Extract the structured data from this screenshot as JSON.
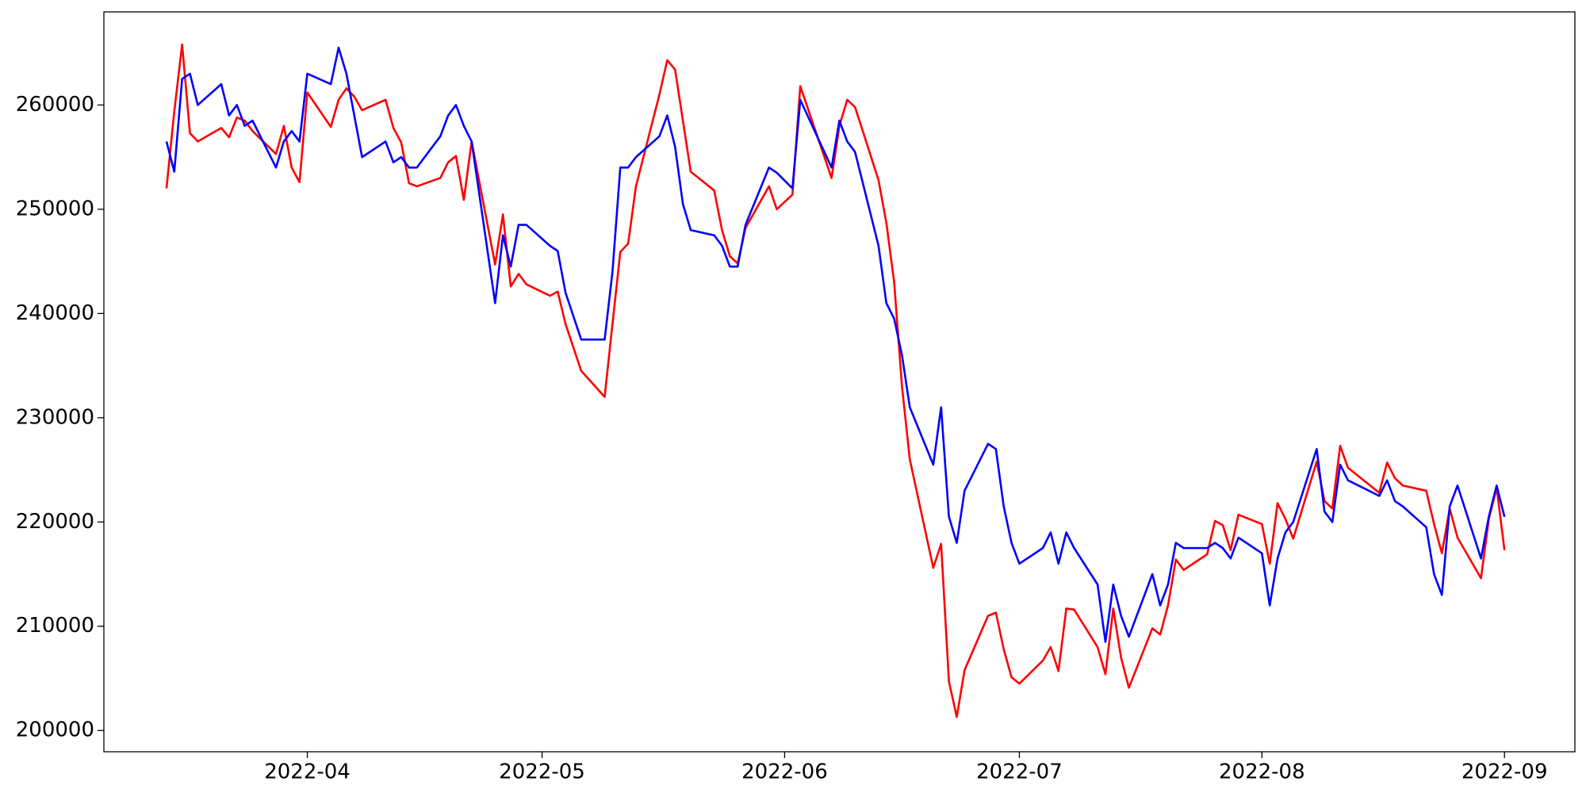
{
  "chart_data": {
    "type": "line",
    "x": [
      "2022-03-14",
      "2022-03-15",
      "2022-03-16",
      "2022-03-17",
      "2022-03-18",
      "2022-03-21",
      "2022-03-22",
      "2022-03-23",
      "2022-03-24",
      "2022-03-25",
      "2022-03-28",
      "2022-03-29",
      "2022-03-30",
      "2022-03-31",
      "2022-04-01",
      "2022-04-04",
      "2022-04-05",
      "2022-04-06",
      "2022-04-07",
      "2022-04-08",
      "2022-04-11",
      "2022-04-12",
      "2022-04-13",
      "2022-04-14",
      "2022-04-15",
      "2022-04-18",
      "2022-04-19",
      "2022-04-20",
      "2022-04-21",
      "2022-04-22",
      "2022-04-25",
      "2022-04-26",
      "2022-04-27",
      "2022-04-28",
      "2022-04-29",
      "2022-05-02",
      "2022-05-03",
      "2022-05-04",
      "2022-05-06",
      "2022-05-09",
      "2022-05-10",
      "2022-05-11",
      "2022-05-12",
      "2022-05-13",
      "2022-05-16",
      "2022-05-17",
      "2022-05-18",
      "2022-05-19",
      "2022-05-20",
      "2022-05-23",
      "2022-05-24",
      "2022-05-25",
      "2022-05-26",
      "2022-05-27",
      "2022-05-30",
      "2022-05-31",
      "2022-06-02",
      "2022-06-03",
      "2022-06-07",
      "2022-06-08",
      "2022-06-09",
      "2022-06-10",
      "2022-06-13",
      "2022-06-14",
      "2022-06-15",
      "2022-06-16",
      "2022-06-17",
      "2022-06-20",
      "2022-06-21",
      "2022-06-22",
      "2022-06-23",
      "2022-06-24",
      "2022-06-27",
      "2022-06-28",
      "2022-06-29",
      "2022-06-30",
      "2022-07-01",
      "2022-07-04",
      "2022-07-05",
      "2022-07-06",
      "2022-07-07",
      "2022-07-08",
      "2022-07-11",
      "2022-07-12",
      "2022-07-13",
      "2022-07-14",
      "2022-07-15",
      "2022-07-18",
      "2022-07-19",
      "2022-07-20",
      "2022-07-21",
      "2022-07-22",
      "2022-07-25",
      "2022-07-26",
      "2022-07-27",
      "2022-07-28",
      "2022-07-29",
      "2022-08-01",
      "2022-08-02",
      "2022-08-03",
      "2022-08-04",
      "2022-08-05",
      "2022-08-08",
      "2022-08-09",
      "2022-08-10",
      "2022-08-11",
      "2022-08-12",
      "2022-08-16",
      "2022-08-17",
      "2022-08-18",
      "2022-08-19",
      "2022-08-22",
      "2022-08-23",
      "2022-08-24",
      "2022-08-25",
      "2022-08-26",
      "2022-08-29",
      "2022-08-30",
      "2022-08-31",
      "2022-09-01"
    ],
    "series": [
      {
        "color": "#ff0000",
        "values": [
          252000,
          259400,
          265800,
          257300,
          256500,
          257800,
          256900,
          258800,
          258500,
          257500,
          255300,
          258000,
          254000,
          252600,
          261200,
          257900,
          260500,
          261600,
          260800,
          259500,
          260500,
          257800,
          256400,
          252500,
          252200,
          253000,
          254500,
          255100,
          250900,
          256500,
          244700,
          249500,
          242600,
          243800,
          242800,
          241700,
          242100,
          239000,
          234500,
          232000,
          239000,
          245900,
          246700,
          252200,
          261000,
          264300,
          263400,
          258500,
          253600,
          251800,
          248000,
          245500,
          244800,
          248200,
          252200,
          250000,
          251400,
          261800,
          253000,
          258000,
          260500,
          259800,
          252800,
          248700,
          243000,
          233000,
          226000,
          215600,
          217900,
          204700,
          201300,
          205800,
          211000,
          211300,
          207800,
          205100,
          204500,
          206700,
          208000,
          205700,
          211700,
          211600,
          208000,
          205400,
          211700,
          207000,
          204100,
          209800,
          209200,
          212000,
          216400,
          215400,
          216900,
          220100,
          219700,
          217300,
          220700,
          219800,
          216000,
          221800,
          220300,
          218400,
          225800,
          222000,
          221300,
          227300,
          225200,
          222800,
          225700,
          224200,
          223500,
          223000,
          219800,
          217000,
          221300,
          218500,
          214600,
          220300,
          223300,
          217300
        ]
      },
      {
        "color": "#0000ff",
        "values": [
          256500,
          253600,
          262500,
          263000,
          260000,
          262000,
          259000,
          260000,
          258000,
          258500,
          254000,
          256500,
          257500,
          256500,
          263000,
          262000,
          265500,
          263000,
          259000,
          255000,
          256500,
          254500,
          255000,
          254000,
          254000,
          257000,
          259000,
          260000,
          258000,
          256500,
          241000,
          247500,
          244500,
          248500,
          248500,
          246500,
          246000,
          242000,
          237500,
          237500,
          244000,
          254000,
          254000,
          255000,
          257000,
          259000,
          256000,
          250500,
          248000,
          247500,
          246500,
          244500,
          244500,
          248500,
          254000,
          253500,
          252000,
          260500,
          254000,
          258500,
          256500,
          255500,
          246500,
          241000,
          239500,
          236000,
          231000,
          225500,
          231000,
          220500,
          218000,
          223000,
          227500,
          227000,
          221500,
          218000,
          216000,
          217500,
          219000,
          216000,
          219000,
          217500,
          214000,
          208500,
          214000,
          211000,
          209000,
          215000,
          212000,
          214000,
          218000,
          217500,
          217500,
          218000,
          217500,
          216500,
          218500,
          217000,
          212000,
          216500,
          219000,
          220000,
          227000,
          221000,
          220000,
          225500,
          224000,
          222500,
          224000,
          222000,
          221500,
          219500,
          215000,
          213000,
          221500,
          223500,
          216500,
          220500,
          223500,
          220500
        ]
      }
    ],
    "xlim": [
      "2022-03-06",
      "2022-09-10"
    ],
    "xticks": [
      "2022-04",
      "2022-05",
      "2022-06",
      "2022-07",
      "2022-08",
      "2022-09"
    ],
    "ylim": [
      197960,
      268930
    ],
    "yticks": [
      200000,
      210000,
      220000,
      230000,
      240000,
      250000,
      260000
    ],
    "grid": false
  }
}
